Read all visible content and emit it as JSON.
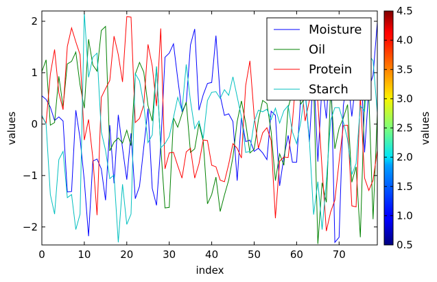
{
  "chart_data": {
    "type": "line",
    "title": "",
    "xlabel": "index",
    "ylabel": "values",
    "xlim": [
      0,
      79
    ],
    "ylim": [
      -2.35,
      2.2
    ],
    "xticks": [
      "0",
      "10",
      "20",
      "30",
      "40",
      "50",
      "60",
      "70"
    ],
    "yticks": [
      "2",
      "1",
      "0",
      "−1",
      "−2"
    ],
    "legend_position": "top-right",
    "grid": false,
    "colorbar": {
      "label": "values",
      "range": [
        0.5,
        4.5
      ],
      "ticks": [
        "4.5",
        "4.0",
        "3.5",
        "3.0",
        "2.5",
        "2.0",
        "1.5",
        "1.0",
        "0.5"
      ],
      "colormap": "jet"
    },
    "series": [
      {
        "name": "Moisture",
        "color": "#0000ff",
        "values": [
          0.55,
          0.48,
          0.33,
          0.07,
          0.14,
          0.06,
          -1.32,
          -1.31,
          0.27,
          -0.28,
          -1.1,
          -2.18,
          -0.72,
          -0.68,
          -0.87,
          -1.48,
          -0.02,
          -1.15,
          0.18,
          -0.47,
          -1.08,
          -0.18,
          -1.45,
          -1.21,
          -0.45,
          0.3,
          -1.25,
          -1.58,
          -0.42,
          1.3,
          1.38,
          1.56,
          0.88,
          0.25,
          0.4,
          1.54,
          1.85,
          0.27,
          0.57,
          0.79,
          0.81,
          1.72,
          0.55,
          0.17,
          0.2,
          0.05,
          -1.1,
          0.13,
          -0.34,
          -0.31,
          -0.53,
          -0.47,
          -0.56,
          -0.69,
          0.25,
          0.17,
          -1.2,
          -0.64,
          -0.22,
          -0.74,
          -0.74,
          0.58,
          0.64,
          -0.35,
          1.05,
          -0.73,
          0.8,
          0.11,
          1.43,
          -2.3,
          -2.2,
          0.36,
          0.92,
          0.15,
          0.88,
          1.5,
          -0.55,
          0.69,
          0.95,
          1.98
        ]
      },
      {
        "name": "Oil",
        "color": "#008000",
        "values": [
          1.02,
          1.25,
          -0.02,
          0.03,
          0.93,
          0.34,
          1.17,
          1.22,
          1.4,
          0.76,
          0.31,
          1.65,
          1.15,
          1.03,
          1.82,
          1.9,
          -0.52,
          -0.35,
          -0.27,
          -0.37,
          -0.12,
          -0.42,
          0.97,
          1.2,
          1.01,
          0.36,
          0.06,
          1.12,
          -0.44,
          -1.63,
          -1.62,
          0.12,
          -0.06,
          0.2,
          0.43,
          -0.55,
          -0.48,
          0.01,
          -0.33,
          -1.55,
          -1.37,
          -1.03,
          -1.7,
          -1.38,
          -1.09,
          -0.64,
          0.05,
          0.45,
          0.02,
          -0.56,
          -0.49,
          0.08,
          0.46,
          0.4,
          -0.15,
          -1.1,
          -0.58,
          -0.8,
          0.32,
          0.61,
          0.78,
          0.39,
          0.52,
          0.8,
          0.81,
          -2.33,
          -1.14,
          -1.52,
          0.67,
          -0.48,
          -0.08,
          0.12,
          0.38,
          -1.13,
          -0.83,
          -2.2,
          0.5,
          0.57,
          -1.85,
          0.2
        ]
      },
      {
        "name": "Protein",
        "color": "#ff0000",
        "values": [
          0.14,
          0.02,
          0.97,
          1.45,
          0.61,
          0.28,
          1.51,
          1.87,
          1.6,
          1.35,
          -0.31,
          0.09,
          -0.65,
          -1.77,
          0.52,
          0.69,
          0.85,
          1.71,
          1.35,
          0.82,
          2.09,
          2.08,
          0.03,
          0.11,
          0.37,
          1.55,
          1.13,
          0.35,
          1.86,
          -0.87,
          -0.56,
          -0.55,
          -0.81,
          -1.05,
          -0.54,
          -0.47,
          -1.05,
          -0.77,
          -0.31,
          -0.32,
          -0.8,
          -0.83,
          -1.09,
          -1.12,
          -0.78,
          -0.38,
          -0.47,
          -0.66,
          0.75,
          1.23,
          0.16,
          -0.47,
          -0.17,
          -0.07,
          -0.32,
          -1.83,
          -0.72,
          -0.64,
          -0.65,
          0.03,
          1.07,
          0.91,
          0.06,
          0.46,
          1.29,
          0.42,
          -0.88,
          -2.08,
          -1.71,
          -1.48,
          -0.73,
          -0.03,
          -0.02,
          -1.59,
          -1.61,
          0.55,
          -1.05,
          -1.29,
          -1.09,
          -0.51
        ]
      },
      {
        "name": "Starch",
        "color": "#00bfbf",
        "values": [
          0.17,
          0.0,
          -1.37,
          -1.75,
          -0.69,
          -0.53,
          -1.43,
          -1.37,
          -2.05,
          -1.75,
          2.16,
          0.91,
          1.3,
          1.38,
          -0.15,
          -0.51,
          -1.06,
          -0.99,
          -2.3,
          -1.17,
          -1.95,
          -1.75,
          0.98,
          0.84,
          0.38,
          -0.36,
          -0.21,
          1.12,
          -0.46,
          -0.38,
          -0.24,
          0.13,
          0.52,
          0.26,
          1.16,
          0.45,
          -0.09,
          0.06,
          -0.28,
          0.46,
          0.62,
          0.63,
          0.5,
          0.67,
          0.56,
          0.92,
          0.53,
          0.14,
          -0.55,
          -0.53,
          0.05,
          0.27,
          0.24,
          0.29,
          0.09,
          0.31,
          0.02,
          0.26,
          0.36,
          -0.15,
          -0.38,
          0.05,
          0.68,
          -0.31,
          -1.76,
          -1.12,
          -2.05,
          -1.11,
          0.07,
          0.32,
          0.32,
          0.04,
          -0.3,
          -0.98,
          -0.77,
          0.36,
          0.25,
          1.35,
          1.23,
          0.22
        ]
      }
    ]
  }
}
